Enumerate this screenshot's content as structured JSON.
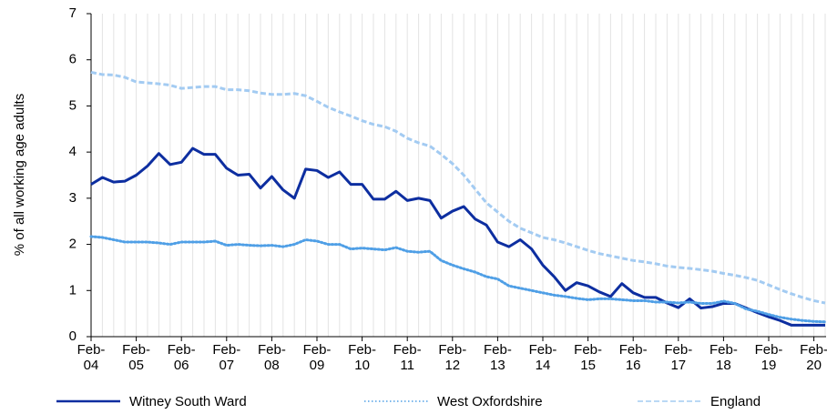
{
  "chart_data": {
    "type": "line",
    "y_label": "% of all working age adults",
    "categories": [
      "Feb-04",
      null,
      null,
      null,
      "Feb-05",
      null,
      null,
      null,
      "Feb-06",
      null,
      null,
      null,
      "Feb-07",
      null,
      null,
      null,
      "Feb-08",
      null,
      null,
      null,
      "Feb-09",
      null,
      null,
      null,
      "Feb-10",
      null,
      null,
      null,
      "Feb-11",
      null,
      null,
      null,
      "Feb-12",
      null,
      null,
      null,
      "Feb-13",
      null,
      null,
      null,
      "Feb-14",
      null,
      null,
      null,
      "Feb-15",
      null,
      null,
      null,
      "Feb-16",
      null,
      null,
      null,
      "Feb-17",
      null,
      null,
      null,
      "Feb-18",
      null,
      null,
      null,
      "Feb-19",
      null,
      null,
      null,
      "Feb-20",
      null
    ],
    "series": [
      {
        "name": "Witney South Ward",
        "color": "#0d2ea0",
        "style": "solid",
        "values": [
          3.3,
          3.45,
          3.35,
          3.37,
          3.5,
          3.7,
          3.97,
          3.73,
          3.78,
          4.08,
          3.95,
          3.95,
          3.65,
          3.5,
          3.52,
          3.22,
          3.47,
          3.18,
          3.0,
          3.63,
          3.6,
          3.45,
          3.57,
          3.3,
          3.3,
          2.98,
          2.98,
          3.15,
          2.95,
          3.0,
          2.95,
          2.57,
          2.72,
          2.82,
          2.55,
          2.42,
          2.05,
          1.95,
          2.1,
          1.9,
          1.55,
          1.3,
          1.0,
          1.17,
          1.1,
          0.97,
          0.87,
          1.15,
          0.95,
          0.85,
          0.85,
          0.73,
          0.63,
          0.82,
          0.62,
          0.65,
          0.72,
          0.72,
          0.62,
          0.52,
          0.43,
          0.35,
          0.25,
          0.25,
          0.25,
          0.25
        ]
      },
      {
        "name": "West Oxfordshire",
        "color": "#4f9fe6",
        "style": "dotted",
        "values": [
          2.17,
          2.15,
          2.1,
          2.05,
          2.05,
          2.05,
          2.03,
          2.0,
          2.05,
          2.05,
          2.05,
          2.07,
          1.98,
          2.0,
          1.98,
          1.97,
          1.98,
          1.95,
          2.0,
          2.1,
          2.07,
          2.0,
          2.0,
          1.9,
          1.92,
          1.9,
          1.88,
          1.93,
          1.85,
          1.83,
          1.85,
          1.65,
          1.55,
          1.47,
          1.4,
          1.3,
          1.25,
          1.1,
          1.05,
          1.0,
          0.95,
          0.9,
          0.87,
          0.83,
          0.8,
          0.82,
          0.82,
          0.8,
          0.78,
          0.78,
          0.75,
          0.75,
          0.73,
          0.75,
          0.72,
          0.72,
          0.77,
          0.72,
          0.6,
          0.55,
          0.48,
          0.42,
          0.38,
          0.35,
          0.33,
          0.32
        ]
      },
      {
        "name": "England",
        "color": "#a3cbf2",
        "style": "dashed",
        "values": [
          5.73,
          5.68,
          5.67,
          5.62,
          5.52,
          5.5,
          5.48,
          5.45,
          5.38,
          5.4,
          5.42,
          5.42,
          5.35,
          5.35,
          5.33,
          5.28,
          5.25,
          5.25,
          5.27,
          5.22,
          5.1,
          4.97,
          4.87,
          4.78,
          4.68,
          4.6,
          4.55,
          4.45,
          4.3,
          4.2,
          4.13,
          3.95,
          3.75,
          3.5,
          3.2,
          2.9,
          2.7,
          2.5,
          2.35,
          2.25,
          2.15,
          2.1,
          2.03,
          1.95,
          1.87,
          1.8,
          1.75,
          1.7,
          1.65,
          1.62,
          1.58,
          1.53,
          1.5,
          1.48,
          1.45,
          1.42,
          1.37,
          1.33,
          1.28,
          1.22,
          1.12,
          1.02,
          0.93,
          0.85,
          0.78,
          0.73
        ]
      }
    ],
    "ylim": [
      0,
      7
    ],
    "yticks": [
      0,
      1,
      2,
      3,
      4,
      5,
      6,
      7
    ],
    "grid": "vertical",
    "legend": "bottom"
  }
}
